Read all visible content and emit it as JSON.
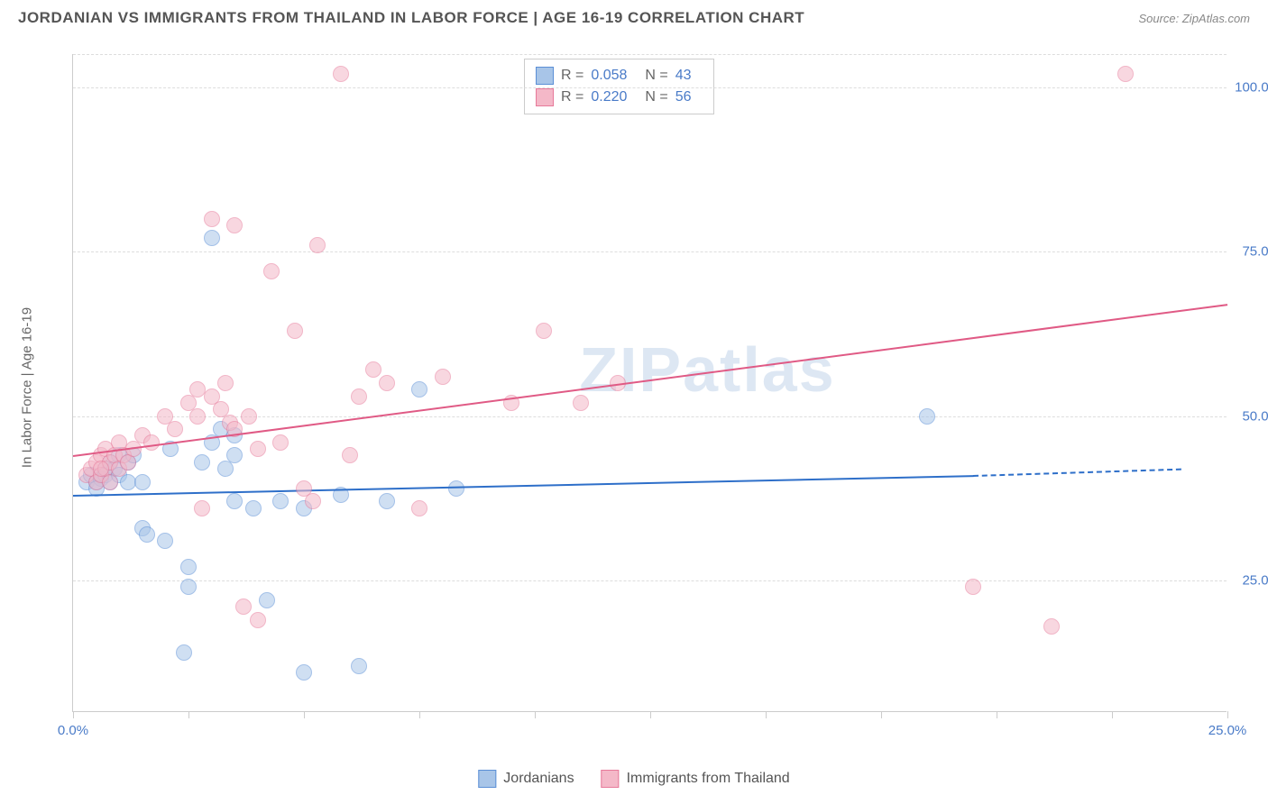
{
  "title": "JORDANIAN VS IMMIGRANTS FROM THAILAND IN LABOR FORCE | AGE 16-19 CORRELATION CHART",
  "source": "Source: ZipAtlas.com",
  "watermark": "ZIPatlas",
  "ylabel": "In Labor Force | Age 16-19",
  "chart": {
    "type": "scatter",
    "xlim": [
      0,
      25
    ],
    "ylim": [
      5,
      105
    ],
    "x_ticks": [
      0,
      2.5,
      5,
      7.5,
      10,
      12.5,
      15,
      17.5,
      20,
      22.5,
      25
    ],
    "x_tick_labels": {
      "0": "0.0%",
      "25": "25.0%"
    },
    "y_gridlines": [
      25,
      50,
      75,
      100,
      105
    ],
    "y_tick_labels": {
      "25": "25.0%",
      "50": "50.0%",
      "75": "75.0%",
      "100": "100.0%"
    },
    "background_color": "#ffffff",
    "grid_color": "#dddddd",
    "axis_color": "#cccccc",
    "tick_label_color": "#4a7bc8",
    "series": [
      {
        "name": "Jordanians",
        "label": "Jordanians",
        "fill": "#a8c5e8",
        "stroke": "#5b8fd6",
        "fill_opacity": 0.55,
        "marker_radius": 9,
        "R": "0.058",
        "N": "43",
        "trend": {
          "x1": 0,
          "y1": 38,
          "x2": 19.5,
          "y2": 41,
          "dash_x2": 24,
          "dash_y2": 42,
          "color": "#2e6fc9"
        },
        "points": [
          [
            0.3,
            40
          ],
          [
            0.4,
            41
          ],
          [
            0.5,
            40
          ],
          [
            0.6,
            41
          ],
          [
            0.6,
            40.5
          ],
          [
            0.7,
            42
          ],
          [
            0.7,
            41
          ],
          [
            0.8,
            43
          ],
          [
            0.8,
            40
          ],
          [
            0.9,
            42
          ],
          [
            1.0,
            41
          ],
          [
            1.0,
            44
          ],
          [
            1.2,
            43
          ],
          [
            1.2,
            40
          ],
          [
            1.3,
            44
          ],
          [
            1.5,
            40
          ],
          [
            1.5,
            33
          ],
          [
            1.6,
            32
          ],
          [
            2.0,
            31
          ],
          [
            2.1,
            45
          ],
          [
            2.4,
            14
          ],
          [
            2.5,
            27
          ],
          [
            2.5,
            24
          ],
          [
            2.8,
            43
          ],
          [
            3.0,
            46
          ],
          [
            3.0,
            77
          ],
          [
            3.2,
            48
          ],
          [
            3.3,
            42
          ],
          [
            3.5,
            47
          ],
          [
            3.5,
            37
          ],
          [
            3.5,
            44
          ],
          [
            3.9,
            36
          ],
          [
            4.2,
            22
          ],
          [
            4.5,
            37
          ],
          [
            5.0,
            36
          ],
          [
            5.0,
            11
          ],
          [
            5.8,
            38
          ],
          [
            6.2,
            12
          ],
          [
            6.8,
            37
          ],
          [
            7.5,
            54
          ],
          [
            8.3,
            39
          ],
          [
            18.5,
            50
          ],
          [
            0.5,
            39
          ]
        ]
      },
      {
        "name": "Immigrants from Thailand",
        "label": "Immigrants from Thailand",
        "fill": "#f4b8c8",
        "stroke": "#e77a9a",
        "fill_opacity": 0.55,
        "marker_radius": 9,
        "R": "0.220",
        "N": "56",
        "trend": {
          "x1": 0,
          "y1": 44,
          "x2": 25,
          "y2": 67,
          "color": "#e05a85"
        },
        "points": [
          [
            0.3,
            41
          ],
          [
            0.4,
            42
          ],
          [
            0.5,
            40
          ],
          [
            0.5,
            43
          ],
          [
            0.6,
            41
          ],
          [
            0.6,
            44
          ],
          [
            0.7,
            42
          ],
          [
            0.7,
            45
          ],
          [
            0.8,
            43
          ],
          [
            0.8,
            40
          ],
          [
            0.9,
            44
          ],
          [
            1.0,
            42
          ],
          [
            1.0,
            46
          ],
          [
            1.1,
            44
          ],
          [
            1.2,
            43
          ],
          [
            1.3,
            45
          ],
          [
            1.5,
            47
          ],
          [
            1.7,
            46
          ],
          [
            2.0,
            50
          ],
          [
            2.2,
            48
          ],
          [
            2.5,
            52
          ],
          [
            2.7,
            50
          ],
          [
            2.7,
            54
          ],
          [
            2.8,
            36
          ],
          [
            3.0,
            53
          ],
          [
            3.0,
            80
          ],
          [
            3.5,
            79
          ],
          [
            3.2,
            51
          ],
          [
            3.3,
            55
          ],
          [
            3.4,
            49
          ],
          [
            3.5,
            48
          ],
          [
            3.7,
            21
          ],
          [
            3.8,
            50
          ],
          [
            4.0,
            45
          ],
          [
            4.0,
            19
          ],
          [
            4.3,
            72
          ],
          [
            4.5,
            46
          ],
          [
            4.8,
            63
          ],
          [
            5.0,
            39
          ],
          [
            5.2,
            37
          ],
          [
            5.3,
            76
          ],
          [
            5.8,
            102
          ],
          [
            6.0,
            44
          ],
          [
            6.2,
            53
          ],
          [
            6.5,
            57
          ],
          [
            6.8,
            55
          ],
          [
            7.5,
            36
          ],
          [
            8.0,
            56
          ],
          [
            9.5,
            52
          ],
          [
            10.2,
            63
          ],
          [
            11.0,
            52
          ],
          [
            11.8,
            55
          ],
          [
            19.5,
            24
          ],
          [
            21.2,
            18
          ],
          [
            22.8,
            102
          ],
          [
            0.6,
            42
          ]
        ]
      }
    ]
  }
}
